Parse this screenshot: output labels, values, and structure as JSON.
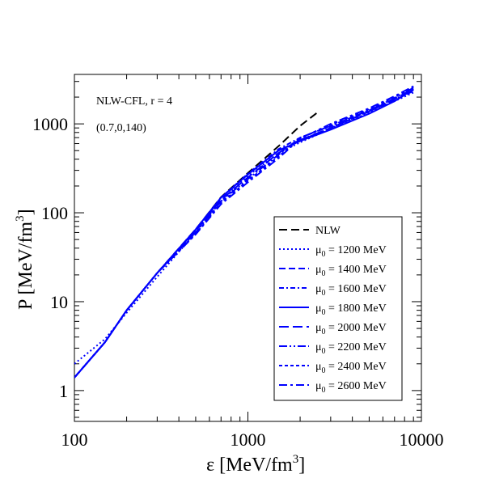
{
  "chart_data": {
    "type": "line",
    "xscale": "log",
    "yscale": "log",
    "xlim": [
      100,
      10000
    ],
    "ylim": [
      0.45,
      3600
    ],
    "x_ticks": [
      100,
      1000,
      10000
    ],
    "x_tick_labels": [
      "100",
      "1000",
      "10000"
    ],
    "y_ticks": [
      1,
      10,
      100,
      1000
    ],
    "y_tick_labels": [
      "1",
      "10",
      "100",
      "1000"
    ],
    "xlabel": {
      "main": "ε [MeV/fm",
      "sup": "3",
      "close": "]"
    },
    "ylabel": {
      "main": "P [MeV/fm",
      "sup": "3",
      "close": "]"
    },
    "annotations": [
      "NLW-CFL, r = 4",
      "(0.7,0,140)"
    ],
    "legend_position": "lower-right",
    "grid": false,
    "series": [
      {
        "label": {
          "text": "NLW"
        },
        "color": "#000000",
        "dash": "10,5",
        "width": 2,
        "points": [
          [
            100,
            1.4
          ],
          [
            150,
            3.5
          ],
          [
            200,
            8
          ],
          [
            300,
            21
          ],
          [
            500,
            65
          ],
          [
            700,
            150
          ],
          [
            1000,
            280
          ],
          [
            1500,
            560
          ],
          [
            2000,
            950
          ],
          [
            2500,
            1330
          ]
        ]
      },
      {
        "label": {
          "pre": "μ",
          "sub": "0",
          "post": " = 1200 MeV"
        },
        "color": "#0000ff",
        "dash": "2,3",
        "width": 2,
        "points": [
          [
            100,
            2.0
          ],
          [
            150,
            3.8
          ],
          [
            200,
            7.5
          ],
          [
            300,
            19
          ],
          [
            500,
            60
          ],
          [
            700,
            135
          ],
          [
            1000,
            260
          ],
          [
            1500,
            470
          ],
          [
            2000,
            620
          ],
          [
            3000,
            880
          ],
          [
            5000,
            1350
          ],
          [
            7000,
            1800
          ],
          [
            9000,
            2250
          ]
        ]
      },
      {
        "label": {
          "pre": "μ",
          "sub": "0",
          "post": " = 1400 MeV"
        },
        "color": "#0000ff",
        "dash": "8,4",
        "width": 2,
        "points": [
          [
            100,
            1.4
          ],
          [
            150,
            3.5
          ],
          [
            200,
            8
          ],
          [
            300,
            21
          ],
          [
            500,
            64
          ],
          [
            700,
            145
          ],
          [
            1000,
            270
          ],
          [
            1500,
            500
          ],
          [
            2000,
            650
          ],
          [
            3000,
            900
          ],
          [
            5000,
            1380
          ],
          [
            7000,
            1850
          ],
          [
            9000,
            2350
          ]
        ]
      },
      {
        "label": {
          "pre": "μ",
          "sub": "0",
          "post": " = 1600 MeV"
        },
        "color": "#0000ff",
        "dash": "6,3,2,3",
        "width": 2,
        "points": [
          [
            100,
            1.4
          ],
          [
            150,
            3.5
          ],
          [
            200,
            8
          ],
          [
            300,
            21
          ],
          [
            500,
            65
          ],
          [
            700,
            148
          ],
          [
            1000,
            275
          ],
          [
            1500,
            520
          ],
          [
            2000,
            700
          ],
          [
            3000,
            940
          ],
          [
            5000,
            1420
          ],
          [
            7000,
            1900
          ],
          [
            9000,
            2400
          ]
        ]
      },
      {
        "label": {
          "pre": "μ",
          "sub": "0",
          "post": " = 1800 MeV"
        },
        "color": "#0000ff",
        "dash": "",
        "width": 2,
        "points": [
          [
            100,
            1.4
          ],
          [
            150,
            3.5
          ],
          [
            200,
            8
          ],
          [
            300,
            21
          ],
          [
            500,
            65
          ],
          [
            700,
            148
          ],
          [
            1000,
            270
          ],
          [
            1500,
            500
          ],
          [
            2000,
            640
          ],
          [
            3000,
            860
          ],
          [
            5000,
            1300
          ],
          [
            7000,
            1800
          ],
          [
            9000,
            2450
          ]
        ]
      },
      {
        "label": {
          "pre": "μ",
          "sub": "0",
          "post": " = 2000 MeV"
        },
        "color": "#0000ff",
        "dash": "12,5",
        "width": 2,
        "points": [
          [
            100,
            1.4
          ],
          [
            150,
            3.5
          ],
          [
            200,
            8
          ],
          [
            300,
            21
          ],
          [
            500,
            62
          ],
          [
            700,
            140
          ],
          [
            1000,
            250
          ],
          [
            1500,
            470
          ],
          [
            2000,
            660
          ],
          [
            3000,
            900
          ],
          [
            5000,
            1380
          ],
          [
            7000,
            1900
          ],
          [
            9000,
            2500
          ]
        ]
      },
      {
        "label": {
          "pre": "μ",
          "sub": "0",
          "post": " = 2200 MeV"
        },
        "color": "#0000ff",
        "dash": "10,3,2,3,2,3",
        "width": 2,
        "points": [
          [
            100,
            1.4
          ],
          [
            150,
            3.5
          ],
          [
            200,
            8
          ],
          [
            300,
            21
          ],
          [
            500,
            60
          ],
          [
            700,
            135
          ],
          [
            1000,
            240
          ],
          [
            1500,
            450
          ],
          [
            2000,
            700
          ],
          [
            3000,
            950
          ],
          [
            5000,
            1420
          ],
          [
            7000,
            1950
          ],
          [
            9000,
            2550
          ]
        ]
      },
      {
        "label": {
          "pre": "μ",
          "sub": "0",
          "post": " = 2400 MeV"
        },
        "color": "#0000ff",
        "dash": "4,3",
        "width": 2,
        "points": [
          [
            100,
            1.4
          ],
          [
            150,
            3.5
          ],
          [
            200,
            8
          ],
          [
            300,
            21
          ],
          [
            500,
            58
          ],
          [
            700,
            130
          ],
          [
            1000,
            230
          ],
          [
            1500,
            430
          ],
          [
            2000,
            690
          ],
          [
            3000,
            980
          ],
          [
            5000,
            1460
          ],
          [
            7000,
            2000
          ],
          [
            9000,
            2600
          ]
        ]
      },
      {
        "label": {
          "pre": "μ",
          "sub": "0",
          "post": " = 2600 MeV"
        },
        "color": "#0000ff",
        "dash": "10,4,3,4",
        "width": 2,
        "points": [
          [
            100,
            1.4
          ],
          [
            150,
            3.5
          ],
          [
            200,
            8
          ],
          [
            300,
            21
          ],
          [
            500,
            57
          ],
          [
            700,
            125
          ],
          [
            1000,
            220
          ],
          [
            1500,
            410
          ],
          [
            2000,
            680
          ],
          [
            3000,
            1000
          ],
          [
            5000,
            1500
          ],
          [
            7000,
            2050
          ],
          [
            9000,
            2650
          ]
        ]
      }
    ]
  }
}
